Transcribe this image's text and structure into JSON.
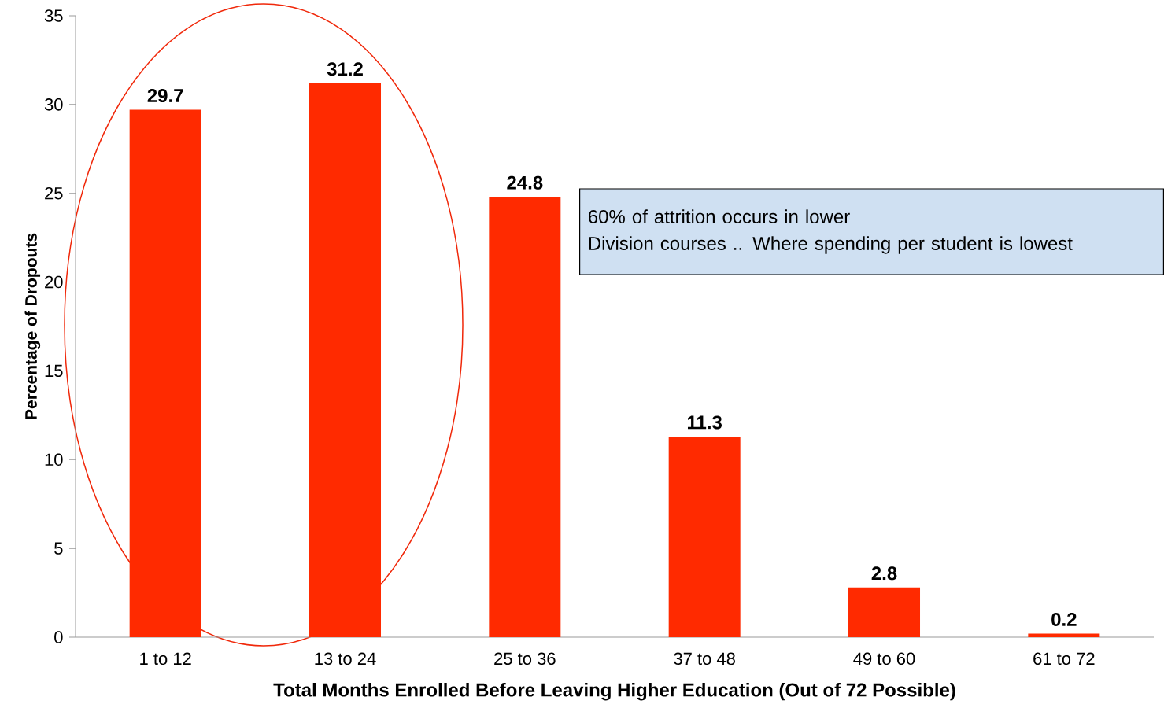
{
  "chart_data": {
    "type": "bar",
    "xlabel": "Total Months Enrolled Before Leaving Higher Education (Out of 72 Possible)",
    "ylabel": "Percentage of Dropouts",
    "categories": [
      "1 to 12",
      "13 to 24",
      "25 to 36",
      "37 to 48",
      "49 to 60",
      "61 to 72"
    ],
    "values": [
      29.7,
      31.2,
      24.8,
      11.3,
      2.8,
      0.2
    ],
    "color": "#ff2a00",
    "ylim": [
      0,
      35
    ],
    "yticks": [
      0,
      5,
      10,
      15,
      20,
      25,
      30,
      35
    ],
    "data_labels": true,
    "annotations": [
      "60% of attrition occurs in lower",
      "Division courses .. Where spending per student is  lowest"
    ]
  }
}
